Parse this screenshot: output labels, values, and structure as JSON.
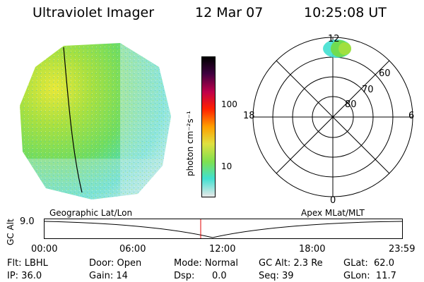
{
  "header": {
    "title": "Ultraviolet Imager",
    "date": "12 Mar 07",
    "time": "10:25:08 UT"
  },
  "colorbar": {
    "label": "photon cm⁻²s⁻¹",
    "ticks": [
      "100",
      "10"
    ],
    "scale": "log",
    "colors": [
      "#e8e8e8",
      "#40e0d0",
      "#7ee050",
      "#e0e040",
      "#ffa000",
      "#ff2000",
      "#c0004a",
      "#400040",
      "#000000"
    ]
  },
  "polar": {
    "mlt_labels": {
      "top": "12",
      "left": "18",
      "right": "6",
      "bottom": "0"
    },
    "lat_labels": [
      "60",
      "70",
      "80"
    ]
  },
  "timeline": {
    "ylabel": "GC Alt",
    "yvalue": "9.0",
    "left_caption": "Geographic Lat/Lon",
    "right_caption": "Apex MLat/MLT",
    "ticks": [
      "00:00",
      "06:00",
      "12:00",
      "18:00",
      "23:59"
    ],
    "marker_time": "10:25"
  },
  "info": {
    "flt": "Flt: LBHL",
    "ip": "IP: 36.0",
    "door": "Door: Open",
    "gain": "Gain: 14",
    "mode": "Mode: Normal",
    "dsp_label": "Dsp:",
    "dsp_value": "0.0",
    "gc_alt": "GC Alt: 2.3 Re",
    "seq": "Seq: 39",
    "glat": "GLat:  62.0",
    "glon": "GLon:  11.7"
  }
}
